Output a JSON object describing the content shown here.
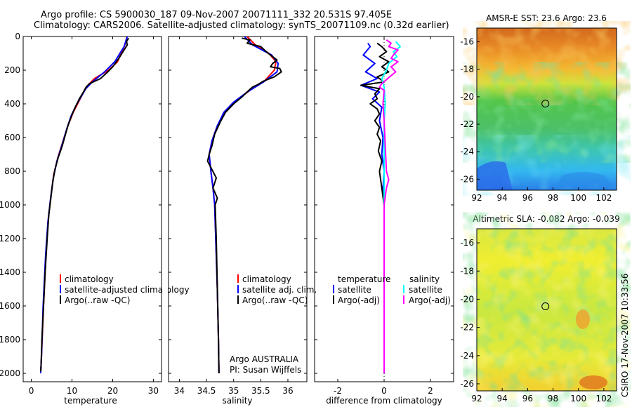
{
  "header": {
    "line1": "Argo profile: CS 5900030_187 09-Nov-2007 20071111_332 20.531S 97.405E",
    "line2": "Climatology: CARS2006. Satellite-adjusted climatology: synTS_20071109.nc (0.32d earlier)"
  },
  "side_label": "CSIRO 17-Nov-2007 10:33:56",
  "colors": {
    "climatology": "#ff0000",
    "satellite": "#0000ff",
    "argo": "#000000",
    "salinity_satellite": "#00ffff",
    "salinity_argo": "#ff00ff"
  },
  "chart_data": [
    {
      "type": "line",
      "id": "temperature",
      "xlabel": "temperature",
      "ylabel": "",
      "xlim": [
        -2,
        32
      ],
      "ylim": [
        2050,
        0
      ],
      "xticks": [
        0,
        10,
        20,
        30
      ],
      "yticks": [
        0,
        200,
        400,
        600,
        800,
        1000,
        1200,
        1400,
        1600,
        1800,
        2000
      ],
      "legend": [
        "climatology",
        "satellite-adjusted climatology",
        "Argo(..raw -QC)"
      ],
      "series": [
        {
          "name": "climatology",
          "color_key": "climatology",
          "points": [
            [
              23.5,
              0
            ],
            [
              23.0,
              50
            ],
            [
              21.2,
              150
            ],
            [
              19.0,
              200
            ],
            [
              15.5,
              250
            ],
            [
              13.5,
              300
            ],
            [
              11.8,
              380
            ],
            [
              10.3,
              450
            ],
            [
              9.0,
              530
            ],
            [
              7.8,
              620
            ],
            [
              6.5,
              720
            ],
            [
              5.5,
              820
            ],
            [
              4.8,
              950
            ],
            [
              4.1,
              1100
            ],
            [
              3.6,
              1300
            ],
            [
              3.0,
              1600
            ],
            [
              2.5,
              1900
            ],
            [
              2.3,
              2000
            ]
          ]
        },
        {
          "name": "satellite-adjusted climatology",
          "color_key": "satellite",
          "points": [
            [
              23.6,
              0
            ],
            [
              22.8,
              60
            ],
            [
              20.5,
              150
            ],
            [
              18.0,
              210
            ],
            [
              15.0,
              270
            ],
            [
              13.4,
              310
            ],
            [
              11.2,
              400
            ],
            [
              9.8,
              470
            ],
            [
              8.7,
              550
            ],
            [
              7.6,
              640
            ],
            [
              6.3,
              740
            ],
            [
              5.4,
              840
            ],
            [
              4.7,
              970
            ],
            [
              4.1,
              1100
            ],
            [
              3.5,
              1300
            ],
            [
              2.9,
              1600
            ],
            [
              2.5,
              1900
            ],
            [
              2.3,
              2000
            ]
          ]
        },
        {
          "name": "Argo(..raw -QC)",
          "color_key": "argo",
          "points": [
            [
              23.9,
              10
            ],
            [
              23.4,
              30
            ],
            [
              23.6,
              50
            ],
            [
              22.8,
              80
            ],
            [
              21.5,
              130
            ],
            [
              20.0,
              180
            ],
            [
              18.8,
              210
            ],
            [
              17.0,
              250
            ],
            [
              14.3,
              280
            ],
            [
              13.5,
              300
            ],
            [
              12.8,
              330
            ],
            [
              11.8,
              370
            ],
            [
              10.6,
              430
            ],
            [
              9.9,
              470
            ],
            [
              9.0,
              530
            ],
            [
              8.4,
              580
            ],
            [
              7.6,
              650
            ],
            [
              6.6,
              720
            ],
            [
              5.8,
              790
            ],
            [
              5.3,
              860
            ],
            [
              4.8,
              960
            ],
            [
              4.3,
              1060
            ],
            [
              3.9,
              1200
            ],
            [
              3.4,
              1400
            ],
            [
              3.0,
              1600
            ],
            [
              2.6,
              1800
            ],
            [
              2.4,
              1950
            ],
            [
              2.3,
              1990
            ]
          ]
        }
      ]
    },
    {
      "type": "line",
      "id": "salinity",
      "xlabel": "salinity",
      "ylabel": "",
      "xlim": [
        33.8,
        36.35
      ],
      "ylim": [
        2050,
        0
      ],
      "xticks": [
        34,
        34.5,
        35,
        35.5,
        36
      ],
      "legend": [
        "climatology",
        "satellite adj. clim.",
        "Argo(..raw -QC)"
      ],
      "annotation": [
        "Argo AUSTRALIA",
        "PI: Susan Wijffels"
      ],
      "series": [
        {
          "name": "climatology",
          "color_key": "climatology",
          "points": [
            [
              35.25,
              0
            ],
            [
              35.4,
              50
            ],
            [
              35.65,
              100
            ],
            [
              35.78,
              150
            ],
            [
              35.75,
              200
            ],
            [
              35.58,
              260
            ],
            [
              35.3,
              320
            ],
            [
              35.05,
              380
            ],
            [
              34.85,
              450
            ],
            [
              34.7,
              530
            ],
            [
              34.6,
              620
            ],
            [
              34.55,
              700
            ],
            [
              34.58,
              800
            ],
            [
              34.62,
              900
            ],
            [
              34.65,
              1000
            ],
            [
              34.67,
              1200
            ],
            [
              34.7,
              1500
            ],
            [
              34.72,
              1800
            ],
            [
              34.73,
              2000
            ]
          ]
        },
        {
          "name": "satellite adj. clim.",
          "color_key": "satellite",
          "points": [
            [
              35.2,
              0
            ],
            [
              35.35,
              50
            ],
            [
              35.7,
              110
            ],
            [
              35.82,
              160
            ],
            [
              35.8,
              210
            ],
            [
              35.55,
              270
            ],
            [
              35.25,
              330
            ],
            [
              35.0,
              390
            ],
            [
              34.82,
              450
            ],
            [
              34.7,
              530
            ],
            [
              34.6,
              620
            ],
            [
              34.55,
              700
            ],
            [
              34.58,
              800
            ],
            [
              34.62,
              900
            ],
            [
              34.65,
              1000
            ],
            [
              34.67,
              1200
            ],
            [
              34.7,
              1500
            ],
            [
              34.72,
              1800
            ],
            [
              34.73,
              2000
            ]
          ]
        },
        {
          "name": "Argo(..raw -QC)",
          "color_key": "argo",
          "points": [
            [
              35.15,
              10
            ],
            [
              35.3,
              20
            ],
            [
              35.25,
              40
            ],
            [
              35.5,
              60
            ],
            [
              35.6,
              90
            ],
            [
              35.72,
              120
            ],
            [
              35.8,
              140
            ],
            [
              35.72,
              160
            ],
            [
              35.68,
              180
            ],
            [
              35.85,
              190
            ],
            [
              35.88,
              210
            ],
            [
              35.75,
              240
            ],
            [
              35.55,
              265
            ],
            [
              35.45,
              285
            ],
            [
              35.35,
              300
            ],
            [
              35.28,
              320
            ],
            [
              35.15,
              360
            ],
            [
              35.0,
              400
            ],
            [
              34.85,
              450
            ],
            [
              34.75,
              510
            ],
            [
              34.65,
              580
            ],
            [
              34.6,
              650
            ],
            [
              34.55,
              700
            ],
            [
              34.52,
              740
            ],
            [
              34.6,
              790
            ],
            [
              34.68,
              840
            ],
            [
              34.62,
              900
            ],
            [
              34.7,
              960
            ],
            [
              34.66,
              1000
            ],
            [
              34.68,
              1200
            ],
            [
              34.7,
              1500
            ],
            [
              34.72,
              1800
            ],
            [
              34.73,
              2000
            ]
          ]
        }
      ]
    },
    {
      "type": "line",
      "id": "difference",
      "xlabel": "difference from climatology",
      "ylabel": "",
      "xlim": [
        -3,
        3
      ],
      "ylim": [
        2050,
        0
      ],
      "xticks": [
        -2,
        0,
        2
      ],
      "legend_temperature": [
        "temperature",
        "satellite",
        "Argo(-adj)"
      ],
      "legend_salinity": [
        "salinity",
        "satellite",
        "Argo(-adj)"
      ],
      "series": [
        {
          "name": "temperature satellite",
          "color_key": "satellite",
          "points": [
            [
              -0.7,
              40
            ],
            [
              -0.6,
              60
            ],
            [
              -0.9,
              110
            ],
            [
              -0.4,
              160
            ],
            [
              -0.8,
              210
            ],
            [
              -0.3,
              250
            ],
            [
              -1.0,
              290
            ],
            [
              -0.2,
              330
            ],
            [
              -0.5,
              370
            ],
            [
              -0.1,
              420
            ],
            [
              -0.2,
              500
            ],
            [
              -0.05,
              600
            ],
            [
              -0.1,
              700
            ],
            [
              0.0,
              800
            ],
            [
              -0.05,
              900
            ],
            [
              0.0,
              1000
            ],
            [
              0.0,
              2000
            ]
          ]
        },
        {
          "name": "temperature Argo(-adj)",
          "color_key": "argo",
          "points": [
            [
              -0.3,
              40
            ],
            [
              -0.1,
              60
            ],
            [
              0.1,
              90
            ],
            [
              -0.2,
              120
            ],
            [
              0.2,
              150
            ],
            [
              -0.1,
              180
            ],
            [
              0.2,
              210
            ],
            [
              -0.3,
              240
            ],
            [
              0.0,
              270
            ],
            [
              -1.0,
              290
            ],
            [
              -0.2,
              310
            ],
            [
              -0.4,
              340
            ],
            [
              -0.3,
              370
            ],
            [
              -0.6,
              400
            ],
            [
              -0.3,
              430
            ],
            [
              -0.2,
              460
            ],
            [
              -0.4,
              500
            ],
            [
              -0.2,
              540
            ],
            [
              -0.3,
              580
            ],
            [
              -0.15,
              620
            ],
            [
              -0.25,
              680
            ],
            [
              -0.1,
              740
            ],
            [
              -0.2,
              800
            ],
            [
              -0.1,
              900
            ],
            [
              0.0,
              1000
            ],
            [
              0.0,
              2000
            ]
          ]
        },
        {
          "name": "salinity satellite",
          "color_key": "salinity_satellite",
          "points": [
            [
              0.5,
              30
            ],
            [
              0.7,
              60
            ],
            [
              0.4,
              90
            ],
            [
              0.55,
              120
            ],
            [
              0.2,
              160
            ],
            [
              0.1,
              200
            ],
            [
              -0.1,
              250
            ],
            [
              0.0,
              300
            ],
            [
              0.05,
              400
            ],
            [
              0.0,
              500
            ],
            [
              0.0,
              2000
            ]
          ]
        },
        {
          "name": "salinity Argo(-adj)",
          "color_key": "salinity_argo",
          "points": [
            [
              0.1,
              20
            ],
            [
              0.3,
              40
            ],
            [
              0.2,
              60
            ],
            [
              0.6,
              80
            ],
            [
              0.4,
              110
            ],
            [
              0.3,
              130
            ],
            [
              0.6,
              150
            ],
            [
              0.3,
              180
            ],
            [
              0.5,
              210
            ],
            [
              0.15,
              250
            ],
            [
              -0.1,
              280
            ],
            [
              -0.2,
              300
            ],
            [
              0.0,
              320
            ],
            [
              -0.05,
              400
            ],
            [
              0.0,
              500
            ],
            [
              0.1,
              800
            ],
            [
              0.2,
              850
            ],
            [
              0.1,
              900
            ],
            [
              0.0,
              1000
            ],
            [
              0.0,
              2000
            ]
          ]
        }
      ]
    },
    {
      "type": "heatmap",
      "id": "sst",
      "title": "AMSR-E SST: 23.6 Argo: 23.6",
      "xlim": [
        92,
        103
      ],
      "ylim": [
        -26.8,
        -15
      ],
      "xticks": [
        92,
        94,
        96,
        98,
        100,
        102
      ],
      "yticks": [
        -16,
        -18,
        -20,
        -22,
        -24,
        -26
      ],
      "marker": [
        97.4,
        -20.5
      ]
    },
    {
      "type": "heatmap",
      "id": "sla",
      "title": "Altimetric SLA: -0.082 Argo: -0.039",
      "xlim": [
        92,
        103
      ],
      "ylim": [
        -26.5,
        -15
      ],
      "xticks": [
        92,
        94,
        96,
        98,
        100,
        102
      ],
      "yticks": [
        -16,
        -18,
        -20,
        -22,
        -24,
        -26
      ],
      "marker": [
        97.4,
        -20.5
      ]
    }
  ]
}
